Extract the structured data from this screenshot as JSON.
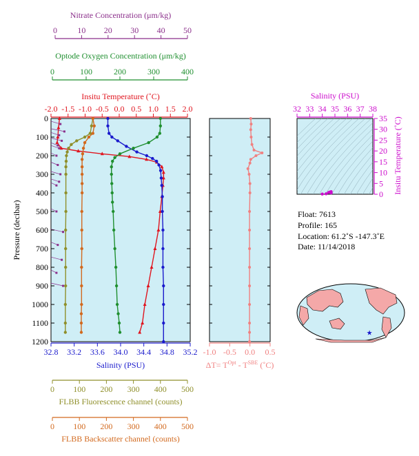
{
  "chart_data": {
    "type": "line",
    "main_panel": {
      "ylabel": "Pressure (decibar)",
      "ylim": [
        0,
        1200
      ],
      "yticks": [
        0,
        100,
        200,
        300,
        400,
        500,
        600,
        700,
        800,
        900,
        1000,
        1100,
        1200
      ],
      "axes": {
        "nitrate": {
          "label": "Nitrate Concentration (μm/kg)",
          "color": "#8b2f8b",
          "range": [
            0,
            50
          ],
          "ticks": [
            0,
            10,
            20,
            30,
            40,
            50
          ]
        },
        "oxygen": {
          "label": "Optode Oxygen Concentration (μm/kg)",
          "color": "#1f8f2f",
          "range": [
            0,
            400
          ],
          "ticks": [
            0,
            100,
            200,
            300,
            400
          ]
        },
        "temperature": {
          "label": "Insitu Temperature (˚C)",
          "color": "#e0141e",
          "range": [
            -2.0,
            2.0
          ],
          "ticks": [
            -2.0,
            -1.5,
            -1.0,
            -0.5,
            0.0,
            0.5,
            1.0,
            1.5,
            2.0
          ]
        },
        "salinity": {
          "label": "Salinity (PSU)",
          "color": "#1a1acc",
          "range": [
            32.8,
            35.2
          ],
          "ticks": [
            32.8,
            33.2,
            33.6,
            34.0,
            34.4,
            34.8,
            35.2
          ]
        },
        "fluorescence": {
          "label": "FLBB Fluorescence channel (counts)",
          "color": "#8f8f2a",
          "range": [
            0,
            500
          ],
          "ticks": [
            0,
            100,
            200,
            300,
            400,
            500
          ]
        },
        "backscatter": {
          "label": "FLBB Backscatter channel (counts)",
          "color": "#d2691e",
          "range": [
            0,
            500
          ],
          "ticks": [
            0,
            100,
            200,
            300,
            400,
            500
          ]
        }
      },
      "series": [
        {
          "axis": "temperature",
          "color": "#e0141e",
          "x": [
            -1.75,
            -1.78,
            -1.8,
            -1.82,
            -1.7,
            -1.2,
            -0.5,
            0.3,
            0.8,
            1.1,
            1.25,
            1.3,
            1.3,
            1.28,
            1.25,
            1.2,
            1.15,
            1.05,
            0.95,
            0.85,
            0.75,
            0.68,
            0.6
          ],
          "y": [
            0,
            50,
            100,
            130,
            160,
            175,
            190,
            205,
            220,
            235,
            260,
            290,
            320,
            360,
            420,
            500,
            600,
            700,
            800,
            900,
            1000,
            1100,
            1150
          ]
        },
        {
          "axis": "salinity",
          "color": "#1a1acc",
          "x": [
            33.78,
            33.78,
            33.8,
            33.85,
            33.95,
            34.1,
            34.28,
            34.45,
            34.55,
            34.62,
            34.66,
            34.69,
            34.7,
            34.71,
            34.72,
            34.72,
            34.73,
            34.73,
            34.73,
            34.74,
            34.74,
            34.74,
            34.74
          ],
          "y": [
            0,
            40,
            80,
            100,
            120,
            150,
            180,
            200,
            215,
            230,
            250,
            280,
            320,
            360,
            420,
            500,
            600,
            700,
            800,
            900,
            1000,
            1100,
            1200
          ]
        },
        {
          "axis": "oxygen",
          "color": "#1f8f2f",
          "x": [
            320,
            320,
            318,
            310,
            285,
            240,
            200,
            185,
            178,
            175,
            175,
            176,
            177,
            178,
            180,
            182,
            185,
            188,
            190,
            192,
            195,
            198,
            200
          ],
          "y": [
            0,
            40,
            80,
            100,
            130,
            160,
            190,
            210,
            230,
            260,
            300,
            350,
            400,
            450,
            500,
            600,
            700,
            800,
            900,
            1000,
            1050,
            1100,
            1150
          ]
        },
        {
          "axis": "fluorescence",
          "color": "#8f8f2a",
          "x": [
            150,
            145,
            140,
            120,
            90,
            70,
            60,
            55,
            52,
            51,
            50,
            50,
            50,
            50,
            49,
            49,
            49,
            49,
            48,
            48,
            48
          ],
          "y": [
            0,
            40,
            80,
            100,
            120,
            140,
            160,
            180,
            200,
            230,
            260,
            300,
            400,
            500,
            600,
            700,
            800,
            900,
            1000,
            1100,
            1150
          ]
        },
        {
          "axis": "backscatter",
          "color": "#d2691e",
          "x": [
            150,
            155,
            150,
            135,
            120,
            115,
            112,
            110,
            110,
            110,
            110,
            110,
            109,
            109,
            109,
            108,
            108,
            108,
            107,
            107,
            107
          ],
          "y": [
            0,
            40,
            80,
            100,
            130,
            160,
            190,
            220,
            260,
            300,
            350,
            400,
            500,
            600,
            700,
            800,
            900,
            1000,
            1050,
            1100,
            1150
          ]
        },
        {
          "axis": "nitrate",
          "color": "#8b2f8b",
          "mode": "markers",
          "x": [
            2.0,
            3.5,
            1.5,
            2.5,
            1.0,
            1.5,
            0.5,
            1.0,
            2.0,
            1.5,
            0.5,
            0.5,
            3.0,
            1.0,
            2.5,
            0.5,
            3.0
          ],
          "y": [
            30,
            70,
            90,
            120,
            145,
            160,
            200,
            250,
            300,
            340,
            360,
            500,
            610,
            680,
            760,
            830,
            900
          ]
        }
      ]
    },
    "dt_panel": {
      "xlabel_main": "ΔT= T",
      "xlabel_sup1": "Opt",
      "xlabel_mid": " - T",
      "xlabel_sup2": "SBE",
      "xlabel_unit": " (˚C)",
      "color": "#f08080",
      "range": [
        -1.0,
        0.5
      ],
      "ticks": [
        -1.0,
        -0.5,
        0.0,
        0.5
      ],
      "x": [
        0.02,
        0.03,
        0.02,
        0.03,
        0.05,
        0.1,
        0.3,
        0.15,
        0.02,
        0.0,
        -0.05,
        -0.02,
        0.0,
        0.0,
        -0.01,
        -0.01,
        -0.01,
        -0.01,
        -0.01,
        -0.01,
        -0.01,
        -0.01,
        -0.01
      ],
      "y": [
        0,
        30,
        60,
        100,
        140,
        170,
        185,
        200,
        220,
        240,
        270,
        300,
        350,
        400,
        500,
        600,
        700,
        800,
        900,
        1000,
        1100,
        1150,
        1200
      ]
    },
    "ts_panel": {
      "title": "Salinity (PSU)",
      "title_color": "#cc0ccc",
      "xrange": [
        32,
        38
      ],
      "xticks": [
        32,
        33,
        34,
        35,
        36,
        37,
        38
      ],
      "ylabel": "Insitu Temperature (˚C)",
      "yrange": [
        0,
        35
      ],
      "yticks": [
        0,
        5,
        10,
        15,
        20,
        25,
        30,
        35
      ],
      "points": [
        {
          "s": 34.5,
          "t": 0.8
        },
        {
          "s": 34.6,
          "t": 1.0
        },
        {
          "s": 34.7,
          "t": 1.2
        },
        {
          "s": 34.7,
          "t": 0.6
        },
        {
          "s": 34.3,
          "t": 0.2
        },
        {
          "s": 34.0,
          "t": 0.1
        }
      ]
    },
    "info": {
      "float": "Float:  7613",
      "profile": "Profile:  165",
      "location": "Location:  61.2˚S  -147.3˚E",
      "date": "Date:  11/14/2018"
    },
    "map": {
      "marker_lat": -61.2,
      "marker_lon": -147.3,
      "marker_color": "#1a1acc"
    }
  }
}
